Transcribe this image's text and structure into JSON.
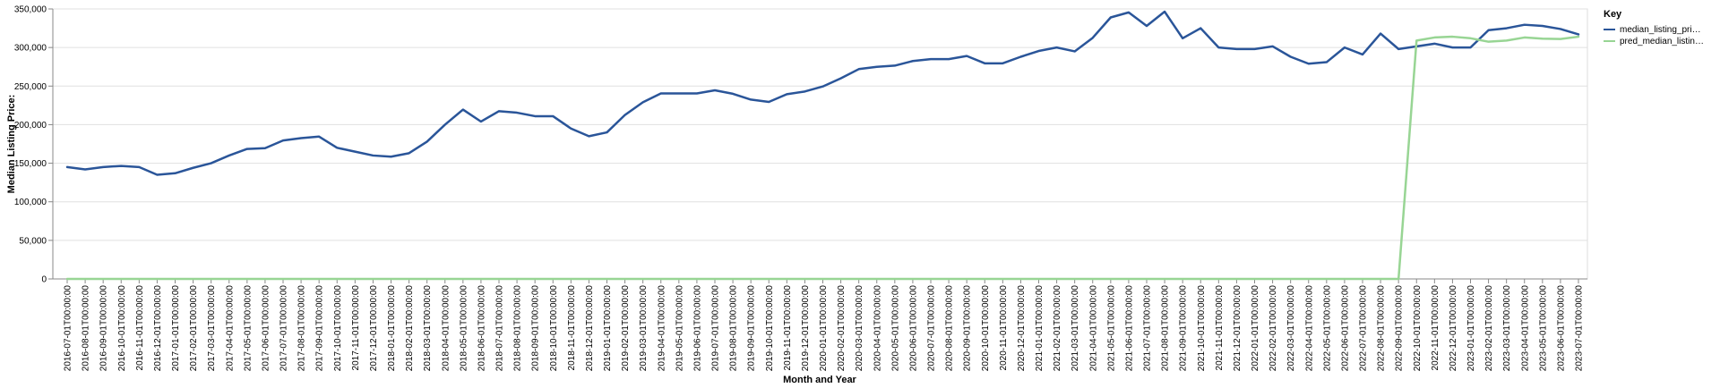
{
  "chart_data": {
    "type": "line",
    "xlabel": "Month and Year",
    "ylabel": "Median Listing Price:",
    "ylim": [
      0,
      350000
    ],
    "yticks": [
      "0",
      "50,000",
      "100,000",
      "150,000",
      "200,000",
      "250,000",
      "300,000",
      "350,000"
    ],
    "grid": true,
    "legend": {
      "title": "Key",
      "placement": "right",
      "entries": [
        "median_listing_pri…",
        "pred_median_listin…"
      ]
    },
    "categories": [
      "2016-07-01T00:00:00",
      "2016-08-01T00:00:00",
      "2016-09-01T00:00:00",
      "2016-10-01T00:00:00",
      "2016-11-01T00:00:00",
      "2016-12-01T00:00:00",
      "2017-01-01T00:00:00",
      "2017-02-01T00:00:00",
      "2017-03-01T00:00:00",
      "2017-04-01T00:00:00",
      "2017-05-01T00:00:00",
      "2017-06-01T00:00:00",
      "2017-07-01T00:00:00",
      "2017-08-01T00:00:00",
      "2017-09-01T00:00:00",
      "2017-10-01T00:00:00",
      "2017-11-01T00:00:00",
      "2017-12-01T00:00:00",
      "2018-01-01T00:00:00",
      "2018-02-01T00:00:00",
      "2018-03-01T00:00:00",
      "2018-04-01T00:00:00",
      "2018-05-01T00:00:00",
      "2018-06-01T00:00:00",
      "2018-07-01T00:00:00",
      "2018-08-01T00:00:00",
      "2018-09-01T00:00:00",
      "2018-10-01T00:00:00",
      "2018-11-01T00:00:00",
      "2018-12-01T00:00:00",
      "2019-01-01T00:00:00",
      "2019-02-01T00:00:00",
      "2019-03-01T00:00:00",
      "2019-04-01T00:00:00",
      "2019-05-01T00:00:00",
      "2019-06-01T00:00:00",
      "2019-07-01T00:00:00",
      "2019-08-01T00:00:00",
      "2019-09-01T00:00:00",
      "2019-10-01T00:00:00",
      "2019-11-01T00:00:00",
      "2019-12-01T00:00:00",
      "2020-01-01T00:00:00",
      "2020-02-01T00:00:00",
      "2020-03-01T00:00:00",
      "2020-04-01T00:00:00",
      "2020-05-01T00:00:00",
      "2020-06-01T00:00:00",
      "2020-07-01T00:00:00",
      "2020-08-01T00:00:00",
      "2020-09-01T00:00:00",
      "2020-10-01T00:00:00",
      "2020-11-01T00:00:00",
      "2020-12-01T00:00:00",
      "2021-01-01T00:00:00",
      "2021-02-01T00:00:00",
      "2021-03-01T00:00:00",
      "2021-04-01T00:00:00",
      "2021-05-01T00:00:00",
      "2021-06-01T00:00:00",
      "2021-07-01T00:00:00",
      "2021-08-01T00:00:00",
      "2021-09-01T00:00:00",
      "2021-10-01T00:00:00",
      "2021-11-01T00:00:00",
      "2021-12-01T00:00:00",
      "2022-01-01T00:00:00",
      "2022-02-01T00:00:00",
      "2022-03-01T00:00:00",
      "2022-04-01T00:00:00",
      "2022-05-01T00:00:00",
      "2022-06-01T00:00:00",
      "2022-07-01T00:00:00",
      "2022-08-01T00:00:00",
      "2022-09-01T00:00:00",
      "2022-10-01T00:00:00",
      "2022-11-01T00:00:00",
      "2022-12-01T00:00:00",
      "2023-01-01T00:00:00",
      "2023-02-01T00:00:00",
      "2023-03-01T00:00:00",
      "2023-04-01T00:00:00",
      "2023-05-01T00:00:00",
      "2023-06-01T00:00:00",
      "2023-07-01T00:00:00"
    ],
    "series": [
      {
        "name": "median_listing_price",
        "color": "#2a5599",
        "values": [
          145000,
          142000,
          145000,
          146500,
          145000,
          135000,
          137000,
          144000,
          150000,
          160000,
          168500,
          169500,
          179500,
          182500,
          184500,
          170000,
          165000,
          160000,
          158500,
          163000,
          178000,
          200000,
          219500,
          204000,
          217500,
          215500,
          211000,
          211000,
          195000,
          185000,
          190000,
          212500,
          229000,
          240500,
          240500,
          240500,
          244500,
          240000,
          232500,
          229500,
          239500,
          243000,
          249500,
          260000,
          272000,
          275000,
          276500,
          282500,
          285000,
          285000,
          289000,
          279500,
          279500,
          288000,
          295500,
          300000,
          295000,
          312500,
          339000,
          345500,
          328000,
          346500,
          312000,
          325000,
          300000,
          298000,
          298000,
          301500,
          288000,
          279000,
          281000,
          300000,
          291000,
          318000,
          298000,
          301500,
          305000,
          300000,
          300000,
          322500,
          325000,
          329500,
          328000,
          324000,
          317000
        ]
      },
      {
        "name": "pred_median_listing_price",
        "color": "#98d594",
        "values": [
          0,
          0,
          0,
          0,
          0,
          0,
          0,
          0,
          0,
          0,
          0,
          0,
          0,
          0,
          0,
          0,
          0,
          0,
          0,
          0,
          0,
          0,
          0,
          0,
          0,
          0,
          0,
          0,
          0,
          0,
          0,
          0,
          0,
          0,
          0,
          0,
          0,
          0,
          0,
          0,
          0,
          0,
          0,
          0,
          0,
          0,
          0,
          0,
          0,
          0,
          0,
          0,
          0,
          0,
          0,
          0,
          0,
          0,
          0,
          0,
          0,
          0,
          0,
          0,
          0,
          0,
          0,
          0,
          0,
          0,
          0,
          0,
          0,
          0,
          0,
          309000,
          313000,
          314000,
          312000,
          307500,
          309000,
          313000,
          311500,
          311000,
          314000
        ]
      }
    ]
  }
}
